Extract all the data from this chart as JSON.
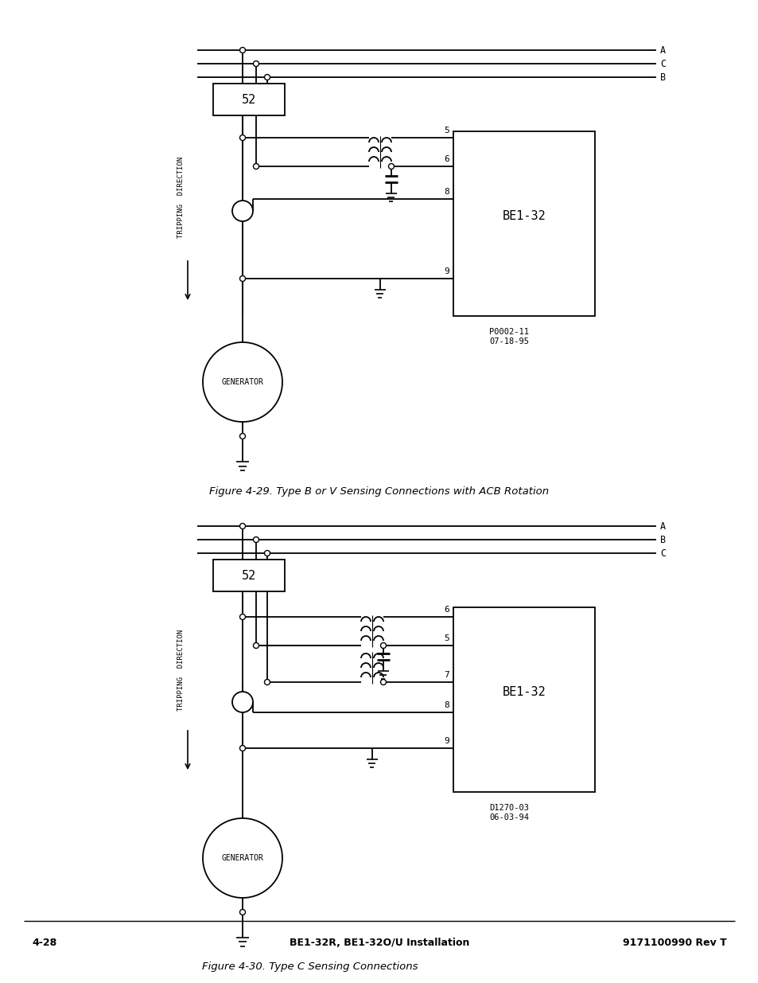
{
  "bg_color": "#ffffff",
  "line_color": "#000000",
  "fig1_caption": "Figure 4-29. Type B or V Sensing Connections with ACB Rotation",
  "fig2_caption": "Figure 4-30. Type C Sensing Connections",
  "footer_left": "4-28",
  "footer_center": "BE1-32R, BE1-32O/U Installation",
  "footer_right": "9171100990 Rev T",
  "fig1_part_num": "P0002-11\n07-18-95",
  "fig2_part_num": "D1270-03\n06-03-94"
}
